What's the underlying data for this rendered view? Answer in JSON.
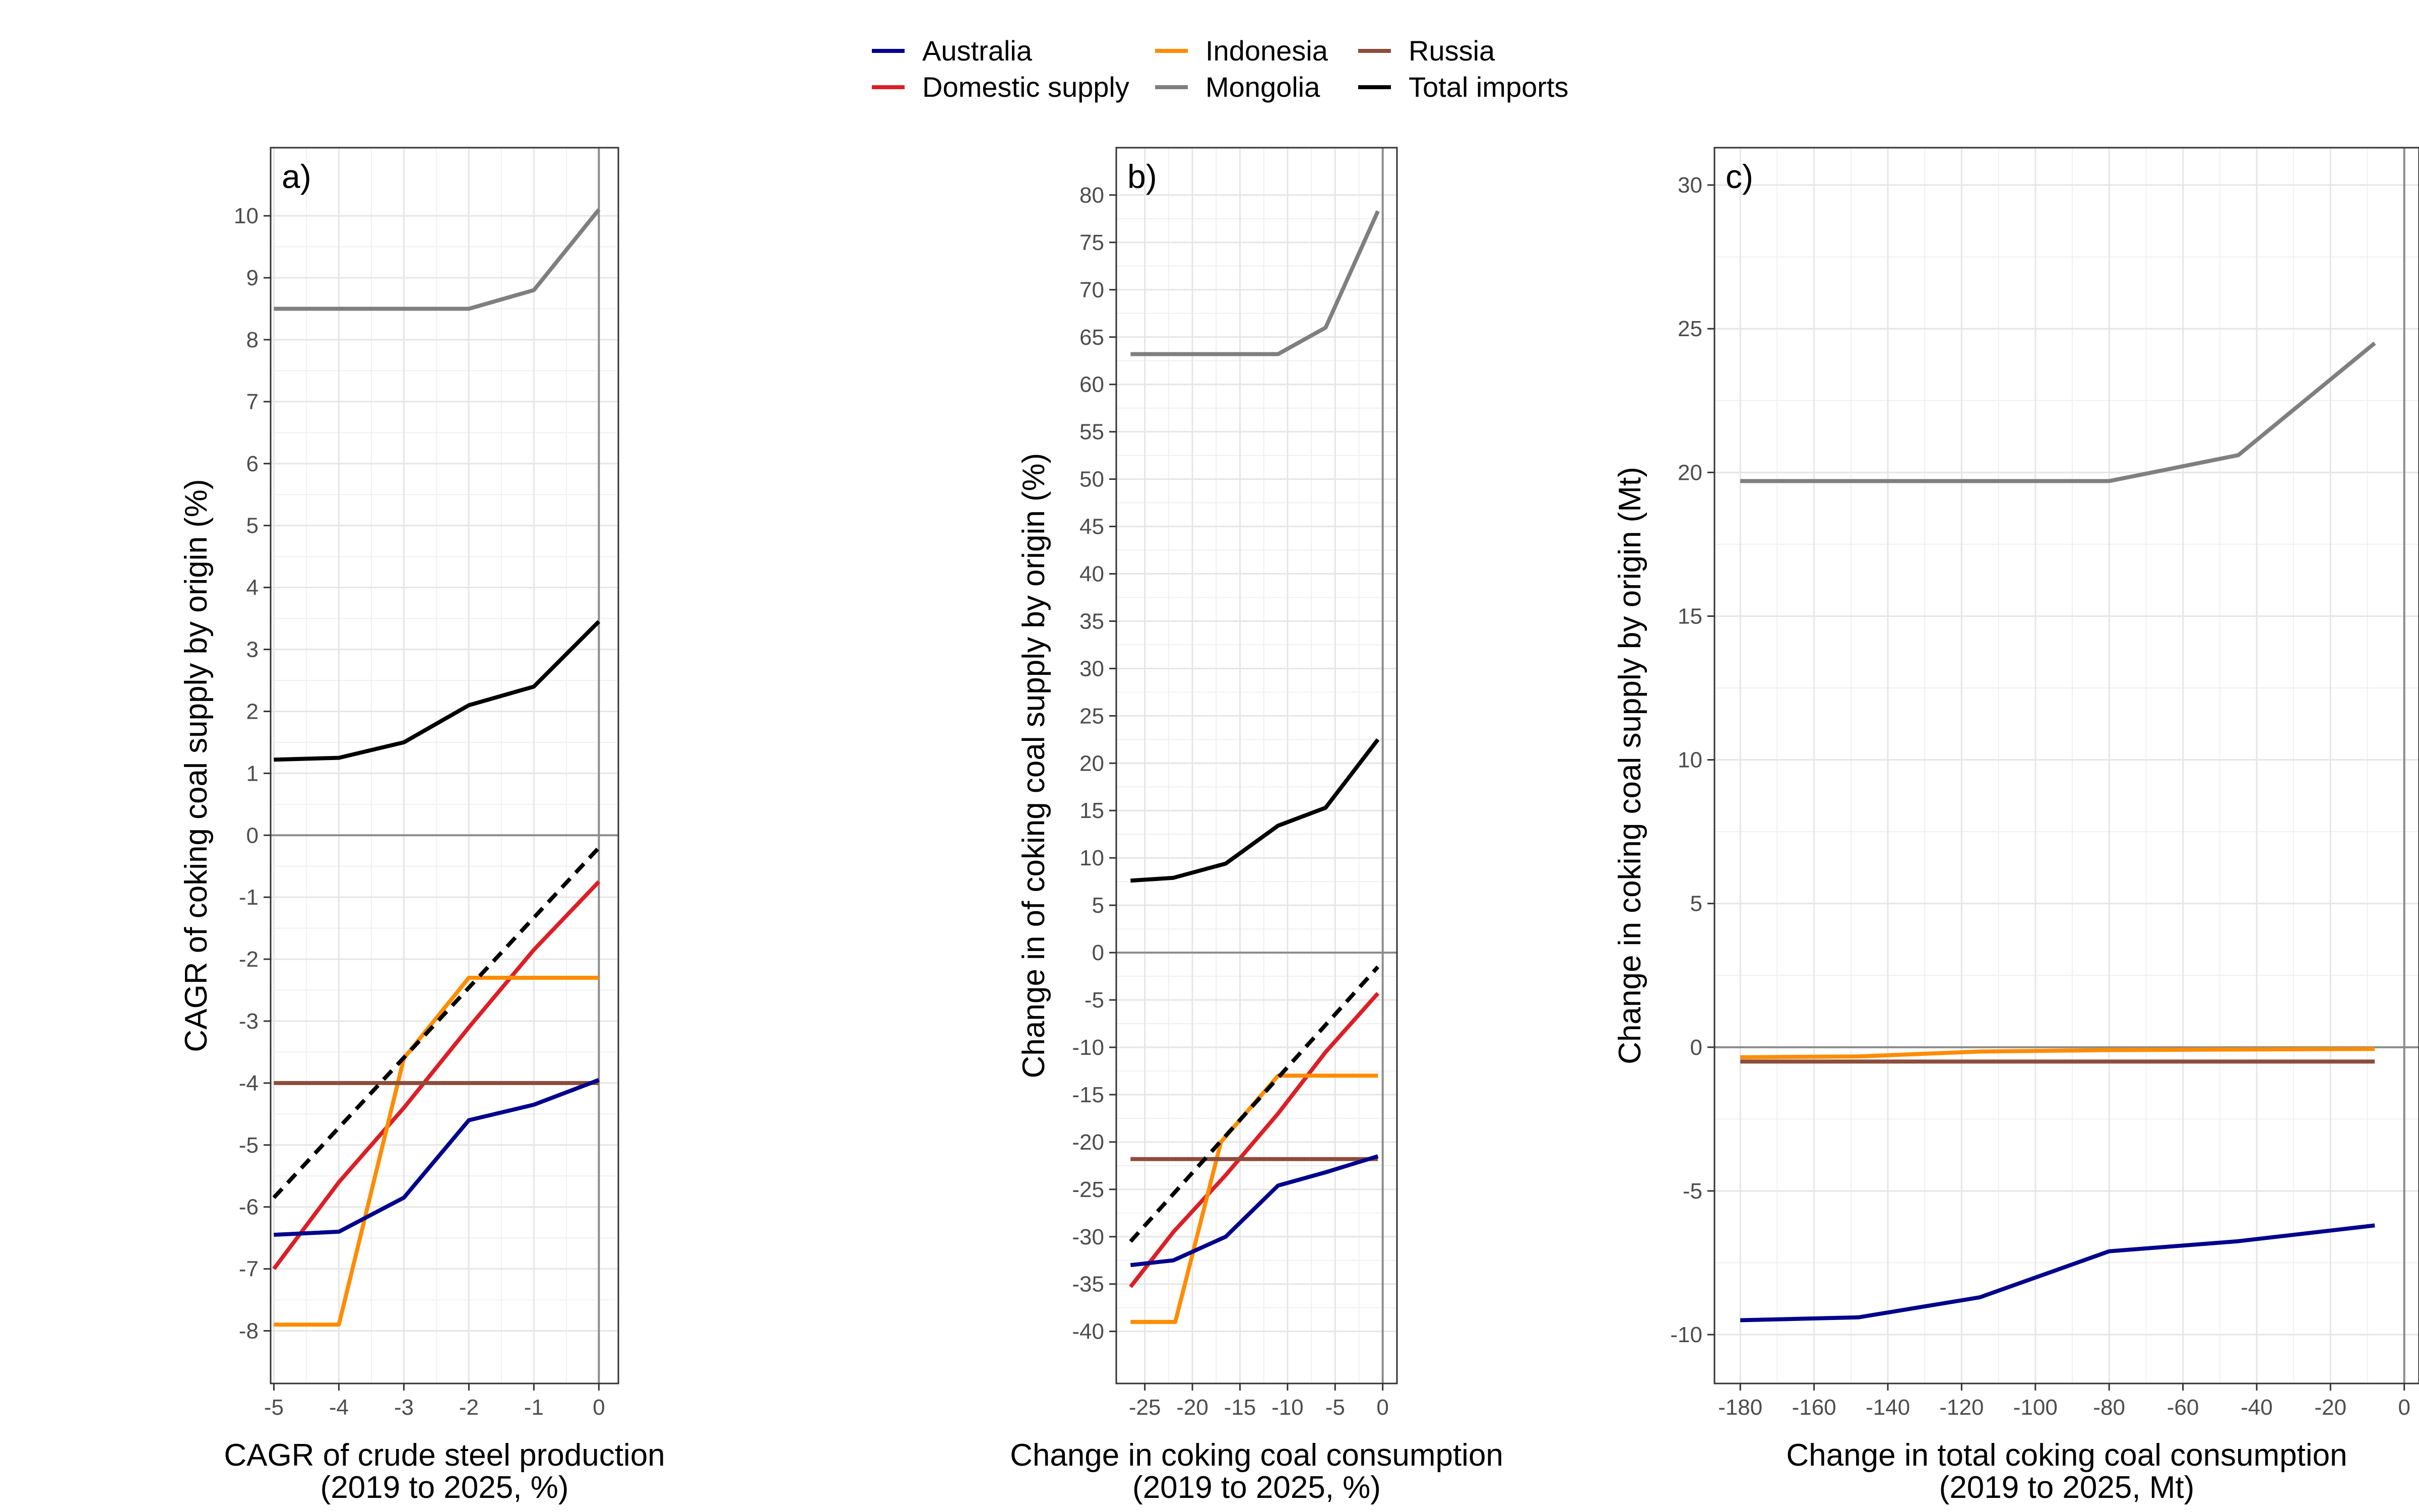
{
  "legend": {
    "items": [
      {
        "label": "Australia",
        "color": "#00008b"
      },
      {
        "label": "Domestic supply",
        "color": "#dc1f26"
      },
      {
        "label": "Indonesia",
        "color": "#ff8c00"
      },
      {
        "label": "Mongolia",
        "color": "#7f7f7f"
      },
      {
        "label": "Russia",
        "color": "#8b4d3c"
      },
      {
        "label": "Total imports",
        "color": "#000000"
      }
    ]
  },
  "chart_data": [
    {
      "type": "line",
      "panel_label": "a)",
      "xlabel": [
        "CAGR of crude steel production",
        "(2019 to 2025, %)"
      ],
      "ylabel": "CAGR of coking coal supply by origin (%)",
      "xlim": [
        -5.05,
        0.3
      ],
      "ylim": [
        -8.85,
        11.1
      ],
      "xticks": [
        -5,
        -4,
        -3,
        -2,
        -1,
        0
      ],
      "yticks": [
        -8,
        -7,
        -6,
        -5,
        -4,
        -3,
        -2,
        -1,
        0,
        1,
        2,
        3,
        4,
        5,
        6,
        7,
        8,
        9,
        10
      ],
      "series": [
        {
          "name": "Mongolia",
          "x": [
            -5,
            -4,
            -3,
            -2,
            -1,
            0
          ],
          "y": [
            8.5,
            8.5,
            8.5,
            8.5,
            8.8,
            10.1
          ]
        },
        {
          "name": "Total imports",
          "x": [
            -5,
            -4,
            -3,
            -2,
            -1,
            0
          ],
          "y": [
            1.22,
            1.25,
            1.5,
            2.1,
            2.4,
            3.45
          ]
        },
        {
          "name": "Domestic supply",
          "x": [
            -5,
            -4,
            -3,
            -2,
            -1,
            0
          ],
          "y": [
            -7.0,
            -5.6,
            -4.4,
            -3.1,
            -1.85,
            -0.75
          ]
        },
        {
          "name": "Indonesia",
          "x": [
            -5,
            -4,
            -3,
            -2,
            -1,
            0
          ],
          "y": [
            -7.9,
            -7.9,
            -3.6,
            -2.3,
            -2.3,
            -2.3
          ]
        },
        {
          "name": "Russia",
          "x": [
            -5,
            -4,
            -3,
            -2,
            -1,
            0
          ],
          "y": [
            -4.0,
            -4.0,
            -4.0,
            -4.0,
            -4.0,
            -4.0
          ]
        },
        {
          "name": "Australia",
          "x": [
            -5,
            -4,
            -3,
            -2,
            -1,
            0
          ],
          "y": [
            -6.45,
            -6.4,
            -5.85,
            -4.6,
            -4.35,
            -3.95
          ]
        },
        {
          "name": "Reference (dashed)",
          "dashed": true,
          "x": [
            -5,
            0
          ],
          "y": [
            -5.85,
            -0.2
          ]
        }
      ]
    },
    {
      "type": "line",
      "panel_label": "b)",
      "xlabel": [
        "Change in coking coal consumption",
        "(2019 to 2025, %)"
      ],
      "ylabel": "Change in of coking coal supply by origin (%)",
      "xlim": [
        -28,
        1.5
      ],
      "ylim": [
        -45.5,
        85
      ],
      "xticks": [
        -25,
        -20,
        -15,
        -10,
        -5,
        0
      ],
      "yticks": [
        -40,
        -35,
        -30,
        -25,
        -20,
        -15,
        -10,
        -5,
        0,
        5,
        10,
        15,
        20,
        25,
        30,
        35,
        40,
        45,
        50,
        55,
        60,
        65,
        70,
        75,
        80
      ],
      "series": [
        {
          "name": "Mongolia",
          "x": [
            -26.5,
            -22,
            -16.5,
            -11,
            -6,
            -0.5
          ],
          "y": [
            63.2,
            63.2,
            63.2,
            63.2,
            66,
            78.3
          ]
        },
        {
          "name": "Total imports",
          "x": [
            -26.5,
            -22,
            -16.5,
            -11,
            -6,
            -0.5
          ],
          "y": [
            7.6,
            7.9,
            9.4,
            13.4,
            15.3,
            22.5
          ]
        },
        {
          "name": "Domestic supply",
          "x": [
            -26.5,
            -22,
            -16.5,
            -11,
            -6,
            -0.5
          ],
          "y": [
            -35.3,
            -29.5,
            -23.5,
            -17.0,
            -10.5,
            -4.3
          ]
        },
        {
          "name": "Indonesia",
          "x": [
            -26.5,
            -21.8,
            -17,
            -11,
            -6,
            -0.5
          ],
          "y": [
            -39.0,
            -39.0,
            -20.0,
            -13.0,
            -13.0,
            -13.0
          ]
        },
        {
          "name": "Russia",
          "x": [
            -26.5,
            -0.5
          ],
          "y": [
            -21.8,
            -21.8
          ]
        },
        {
          "name": "Australia",
          "x": [
            -26.5,
            -22,
            -16.5,
            -11,
            -6,
            -0.5
          ],
          "y": [
            -33.0,
            -32.5,
            -30.0,
            -24.6,
            -23.2,
            -21.5
          ]
        },
        {
          "name": "Reference (dashed)",
          "dashed": true,
          "x": [
            -26.5,
            -0.5
          ],
          "y": [
            -30.5,
            -1.5
          ]
        }
      ]
    },
    {
      "type": "line",
      "panel_label": "c)",
      "xlabel": [
        "Change in total coking coal consumption",
        "(2019 to 2025, Mt)"
      ],
      "ylabel": "Change in coking coal supply by origin (Mt)",
      "xlim": [
        -187,
        4
      ],
      "ylim": [
        -11.7,
        31.3
      ],
      "xticks": [
        -180,
        -160,
        -140,
        -120,
        -100,
        -80,
        -60,
        -40,
        -20,
        0
      ],
      "yticks": [
        -10,
        -5,
        0,
        5,
        10,
        15,
        20,
        25,
        30
      ],
      "series": [
        {
          "name": "Mongolia",
          "x": [
            -180,
            -148,
            -115,
            -80,
            -45,
            -8
          ],
          "y": [
            19.7,
            19.7,
            19.7,
            19.7,
            20.6,
            24.5
          ]
        },
        {
          "name": "Indonesia",
          "x": [
            -180,
            -148,
            -115,
            -80,
            -45,
            -8
          ],
          "y": [
            -0.35,
            -0.32,
            -0.15,
            -0.1,
            -0.08,
            -0.06
          ]
        },
        {
          "name": "Russia",
          "x": [
            -180,
            -8
          ],
          "y": [
            -0.5,
            -0.5
          ]
        },
        {
          "name": "Australia",
          "x": [
            -180,
            -148,
            -115,
            -80,
            -45,
            -8
          ],
          "y": [
            -9.5,
            -9.4,
            -8.7,
            -7.1,
            -6.75,
            -6.2
          ]
        }
      ]
    }
  ]
}
